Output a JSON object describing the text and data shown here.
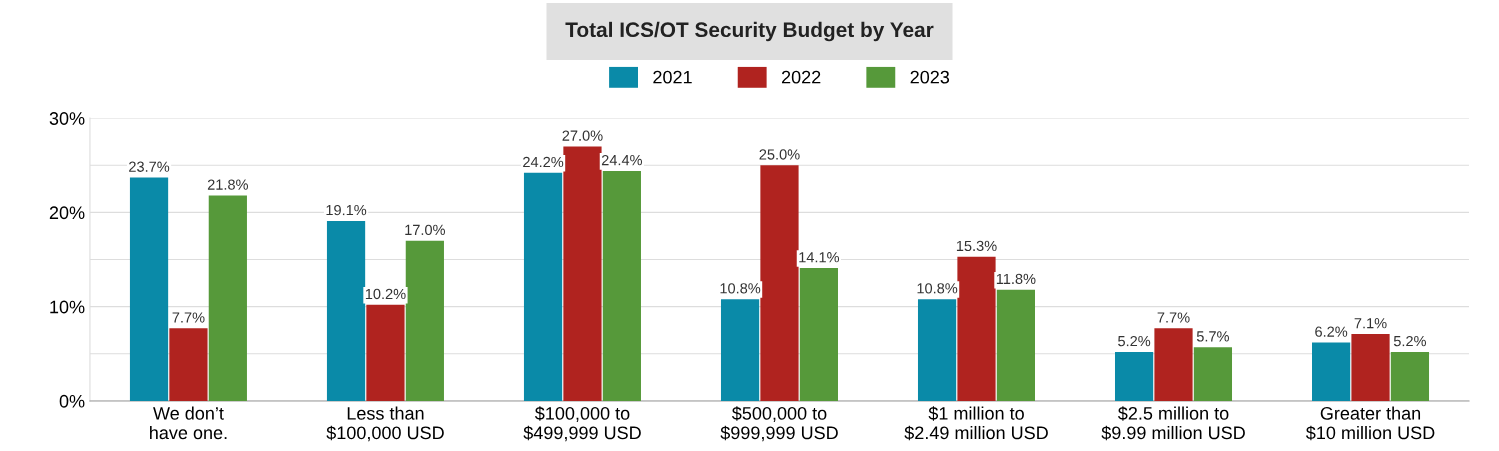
{
  "chart_data": {
    "type": "bar",
    "title": "Total ICS/OT Security Budget by Year",
    "categories": [
      "We don’t\nhave one.",
      "Less than\n$100,000 USD",
      "$100,000 to\n$499,999 USD",
      "$500,000 to\n$999,999 USD",
      "$1 million to\n$2.49 million USD",
      "$2.5 million to\n$9.99 million USD",
      "Greater than\n$10 million USD"
    ],
    "series": [
      {
        "name": "2021",
        "color": "#0a8aa8",
        "values": [
          23.7,
          19.1,
          24.2,
          10.8,
          10.8,
          5.2,
          6.2
        ],
        "value_labels": [
          "23.7%",
          "19.1%",
          "24.2%",
          "10.8%",
          "10.8%",
          "5.2%",
          "6.2%"
        ]
      },
      {
        "name": "2022",
        "color": "#b0231f",
        "values": [
          7.7,
          10.2,
          27.0,
          25.0,
          15.3,
          7.7,
          7.1
        ],
        "value_labels": [
          "7.7%",
          "10.2%",
          "27.0%",
          "25.0%",
          "15.3%",
          "7.7%",
          "7.1%"
        ]
      },
      {
        "name": "2023",
        "color": "#56993a",
        "values": [
          21.8,
          17.0,
          24.4,
          14.1,
          11.8,
          5.7,
          5.2
        ],
        "value_labels": [
          "21.8%",
          "17.0%",
          "24.4%",
          "14.1%",
          "11.8%",
          "5.7%",
          "5.2%"
        ]
      }
    ],
    "ylim": [
      0,
      30
    ],
    "yticks": [
      {
        "value": 0,
        "label": "0%"
      },
      {
        "value": 5,
        "label": null
      },
      {
        "value": 10,
        "label": "10%"
      },
      {
        "value": 15,
        "label": null
      },
      {
        "value": 20,
        "label": "20%"
      },
      {
        "value": 25,
        "label": null
      },
      {
        "value": 30,
        "label": "30%"
      }
    ],
    "grid": "y",
    "legend": "top"
  }
}
